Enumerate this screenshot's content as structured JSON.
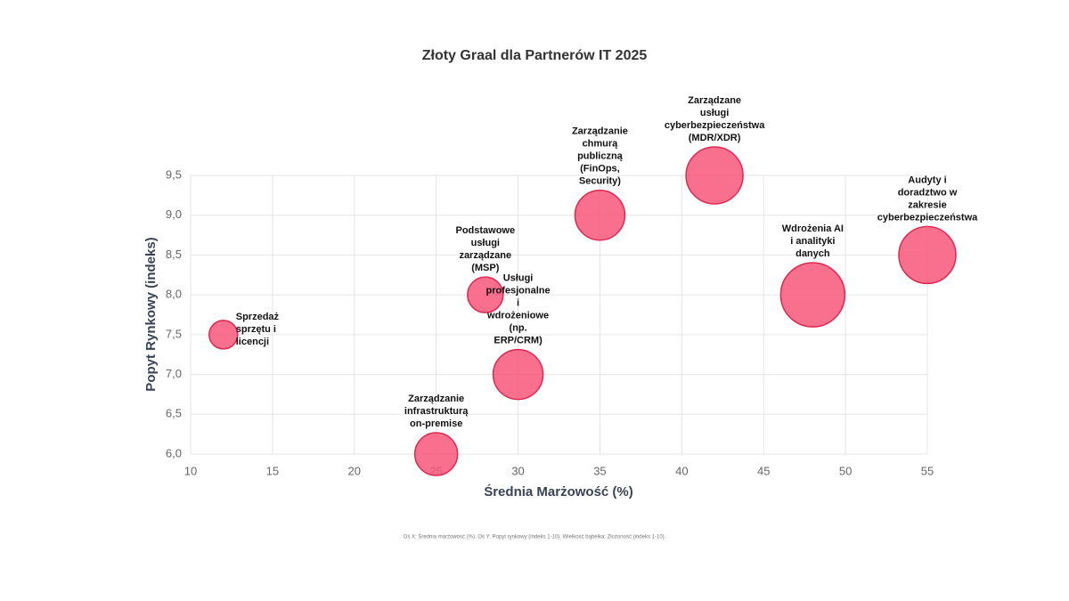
{
  "chart_data": {
    "type": "bubble",
    "title": "Złoty Graal dla Partnerów IT 2025",
    "x_label": "Średnia Marżowość (%)",
    "y_label": "Popyt Rynkowy (indeks)",
    "footnote": "Oś X: Średnia marżowość (%). Oś Y: Popyt rynkowy (indeks 1-10). Wielkość bąbelka: Złożoność (indeks 1-10).",
    "labels": [
      [
        "Sprzedaż",
        "sprzętu i",
        "licencji"
      ],
      [
        "Zarządzanie",
        "infrastrukturą",
        "on-premise"
      ],
      [
        "Podstawowe",
        "usługi",
        "zarządzane",
        "(MSP)"
      ],
      [
        "Usługi",
        "profesjonalne",
        "i",
        "wdrożeniowe",
        "(np.",
        "ERP/CRM)"
      ],
      [
        "Zarządzanie",
        "chmurą",
        "publiczną",
        "(FinOps,",
        "Security)"
      ],
      [
        "Zarządzane",
        "usługi",
        "cyberbezpieczeństwa",
        "(MDR/XDR)"
      ],
      [
        "Wdrożenia AI",
        "i analityki",
        "danych"
      ],
      [
        "Audyty i",
        "doradztwo w",
        "zakresie",
        "cyberbezpieczeństwa"
      ]
    ],
    "x": [
      12,
      25,
      28,
      30,
      35,
      42,
      48,
      55
    ],
    "values": [
      7.5,
      6.0,
      8.0,
      7.0,
      9.0,
      9.5,
      8.0,
      8.5
    ],
    "sizes": [
      4,
      6,
      5,
      7,
      7,
      8,
      9,
      8
    ],
    "color": "#f7577a",
    "xlim": [
      10,
      55
    ],
    "xticks": [
      10,
      15,
      20,
      25,
      30,
      35,
      40,
      45,
      50,
      55
    ],
    "ylim": [
      6.0,
      9.5
    ],
    "yticks": [
      {
        "value": 6.0,
        "label": "6,0"
      },
      {
        "value": 6.5,
        "label": "6,5"
      },
      {
        "value": 7.0,
        "label": "7,0"
      },
      {
        "value": 7.5,
        "label": "7,5"
      },
      {
        "value": 8.0,
        "label": "8,0"
      },
      {
        "value": 8.5,
        "label": "8,5"
      },
      {
        "value": 9.0,
        "label": "9,0"
      },
      {
        "value": 9.5,
        "label": "9,5"
      }
    ],
    "grid": true
  }
}
